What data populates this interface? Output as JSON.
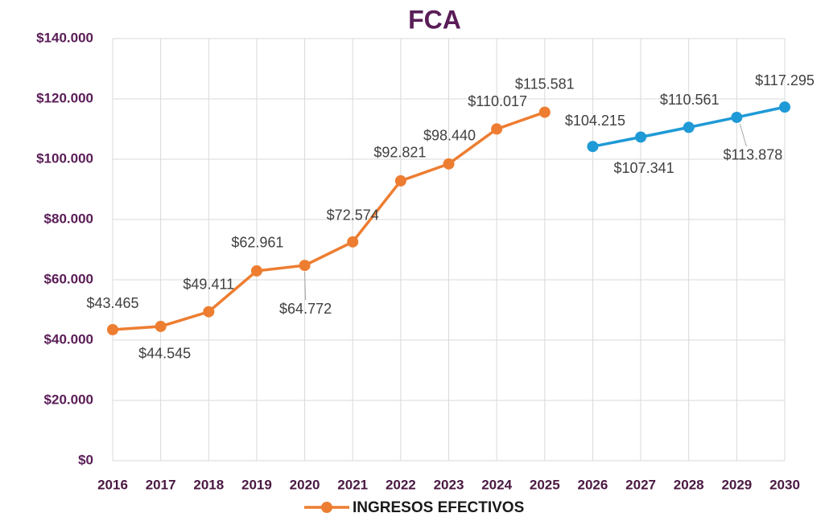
{
  "chart_data": {
    "type": "line",
    "title": "FCA",
    "categories": [
      "2016",
      "2017",
      "2018",
      "2019",
      "2020",
      "2021",
      "2022",
      "2023",
      "2024",
      "2025",
      "2026",
      "2027",
      "2028",
      "2029",
      "2030"
    ],
    "series": [
      {
        "name": "INGRESOS EFECTIVOS",
        "color": "#ed7d31",
        "values": [
          43465,
          44545,
          49411,
          62961,
          64772,
          72574,
          92821,
          98440,
          110017,
          115581,
          null,
          null,
          null,
          null,
          null
        ],
        "value_labels": [
          "$43.465",
          "$44.545",
          "$49.411",
          "$62.961",
          "$64.772",
          "$72.574",
          "$92.821",
          "$98.440",
          "$110.017",
          "$115.581",
          null,
          null,
          null,
          null,
          null
        ]
      },
      {
        "color": "#1f9ad6",
        "values": [
          null,
          null,
          null,
          null,
          null,
          null,
          null,
          null,
          null,
          null,
          104215,
          107341,
          110561,
          113878,
          117295
        ],
        "value_labels": [
          null,
          null,
          null,
          null,
          null,
          null,
          null,
          null,
          null,
          null,
          "$104.215",
          "$107.341",
          "$110.561",
          "$113.878",
          "$117.295"
        ]
      }
    ],
    "ylim": [
      0,
      140000
    ],
    "yticks": [
      {
        "value": 0,
        "label": "$0"
      },
      {
        "value": 20000,
        "label": "$20.000"
      },
      {
        "value": 40000,
        "label": "$40.000"
      },
      {
        "value": 60000,
        "label": "$60.000"
      },
      {
        "value": 80000,
        "label": "$80.000"
      },
      {
        "value": 100000,
        "label": "$100.000"
      },
      {
        "value": 120000,
        "label": "$120.000"
      },
      {
        "value": 140000,
        "label": "$140.000"
      }
    ],
    "grid": true,
    "legend": "bottom"
  }
}
